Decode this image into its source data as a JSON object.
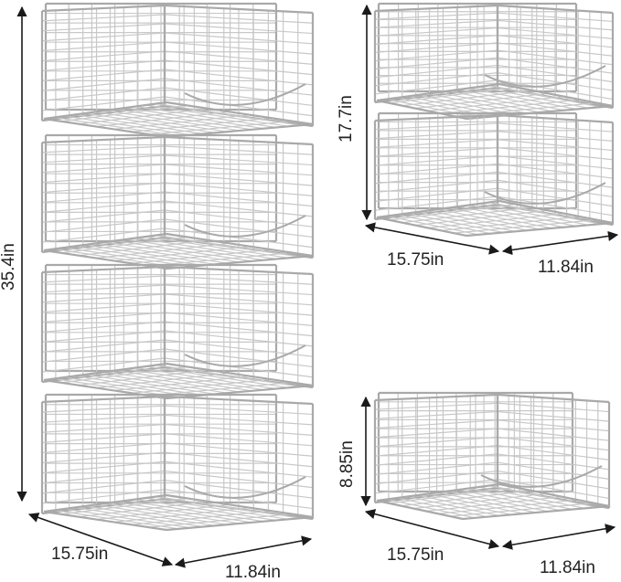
{
  "colors": {
    "wire": "#c8c8c8",
    "wire_dark": "#a9a9a9",
    "dimension": "#1a1a1a",
    "background": "#ffffff"
  },
  "tall_stack": {
    "height_label": "35.4in",
    "depth_label": "15.75in",
    "width_label": "11.84in"
  },
  "double_stack": {
    "height_label": "17.7in",
    "depth_label": "15.75in",
    "width_label": "11.84in"
  },
  "single_basket": {
    "height_label": "8.85in",
    "depth_label": "15.75in",
    "width_label": "11.84in"
  }
}
